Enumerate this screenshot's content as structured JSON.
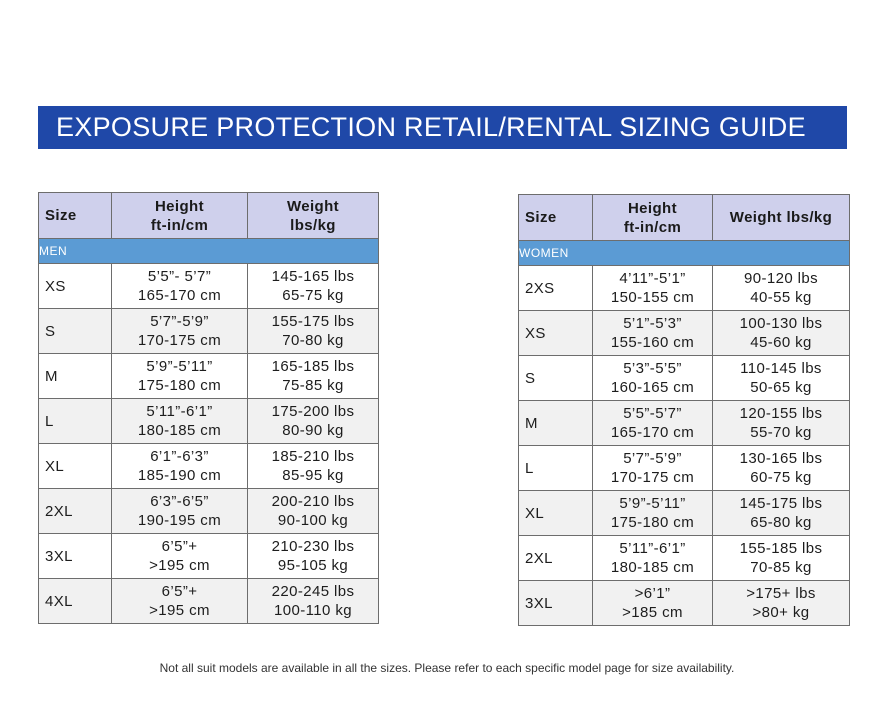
{
  "title": "EXPOSURE PROTECTION RETAIL/RENTAL SIZING GUIDE",
  "men": {
    "headers": {
      "size": "Size",
      "height": [
        "Height",
        "ft-in/cm"
      ],
      "weight": [
        "Weight",
        "lbs/kg"
      ]
    },
    "section_label": "MEN",
    "rows": [
      {
        "size": "XS",
        "height": [
          "5’5”- 5’7”",
          "165-170 cm"
        ],
        "weight": [
          "145-165 lbs",
          "65-75 kg"
        ]
      },
      {
        "size": "S",
        "height": [
          "5’7”-5’9”",
          "170-175 cm"
        ],
        "weight": [
          "155-175 lbs",
          "70-80 kg"
        ]
      },
      {
        "size": "M",
        "height": [
          "5’9”-5’11”",
          "175-180 cm"
        ],
        "weight": [
          "165-185 lbs",
          "75-85 kg"
        ]
      },
      {
        "size": "L",
        "height": [
          "5’11”-6’1”",
          "180-185 cm"
        ],
        "weight": [
          "175-200 lbs",
          "80-90 kg"
        ]
      },
      {
        "size": "XL",
        "height": [
          "6’1”-6’3”",
          "185-190 cm"
        ],
        "weight": [
          "185-210 lbs",
          "85-95 kg"
        ]
      },
      {
        "size": "2XL",
        "height": [
          "6’3”-6’5”",
          "190-195 cm"
        ],
        "weight": [
          "200-210 lbs",
          "90-100 kg"
        ]
      },
      {
        "size": "3XL",
        "height": [
          "6’5”+",
          ">195 cm"
        ],
        "weight": [
          "210-230 lbs",
          "95-105 kg"
        ]
      },
      {
        "size": "4XL",
        "height": [
          "6’5”+",
          ">195 cm"
        ],
        "weight": [
          "220-245 lbs",
          "100-110 kg"
        ]
      }
    ]
  },
  "women": {
    "headers": {
      "size": "Size",
      "height": [
        "Height",
        "ft-in/cm"
      ],
      "weight": [
        "Weight lbs/kg"
      ]
    },
    "section_label": "WOMEN",
    "rows": [
      {
        "size": "2XS",
        "height": [
          "4’11”-5’1”",
          "150-155 cm"
        ],
        "weight": [
          "90-120 lbs",
          "40-55 kg"
        ]
      },
      {
        "size": "XS",
        "height": [
          "5’1”-5’3”",
          "155-160 cm"
        ],
        "weight": [
          "100-130 lbs",
          "45-60 kg"
        ]
      },
      {
        "size": "S",
        "height": [
          "5’3”-5’5”",
          "160-165 cm"
        ],
        "weight": [
          "110-145 lbs",
          "50-65 kg"
        ]
      },
      {
        "size": "M",
        "height": [
          "5’5”-5’7”",
          "165-170 cm"
        ],
        "weight": [
          "120-155 lbs",
          "55-70 kg"
        ]
      },
      {
        "size": "L",
        "height": [
          "5’7”-5’9”",
          "170-175 cm"
        ],
        "weight": [
          "130-165 lbs",
          "60-75 kg"
        ]
      },
      {
        "size": "XL",
        "height": [
          "5’9”-5’11”",
          "175-180 cm"
        ],
        "weight": [
          "145-175 lbs",
          "65-80 kg"
        ]
      },
      {
        "size": "2XL",
        "height": [
          "5’11”-6’1”",
          "180-185 cm"
        ],
        "weight": [
          "155-185 lbs",
          "70-85 kg"
        ]
      },
      {
        "size": "3XL",
        "height": [
          ">6’1”",
          ">185 cm"
        ],
        "weight": [
          ">175+ lbs",
          ">80+ kg"
        ]
      }
    ]
  },
  "footnote": "Not all suit models are available in all the sizes. Please refer to each specific model page for size availability.",
  "colors": {
    "banner": "#1f48a8",
    "header_cell": "#cfd0ec",
    "section_bar": "#5b9bd4",
    "alt_row": "#f1f1f1"
  }
}
